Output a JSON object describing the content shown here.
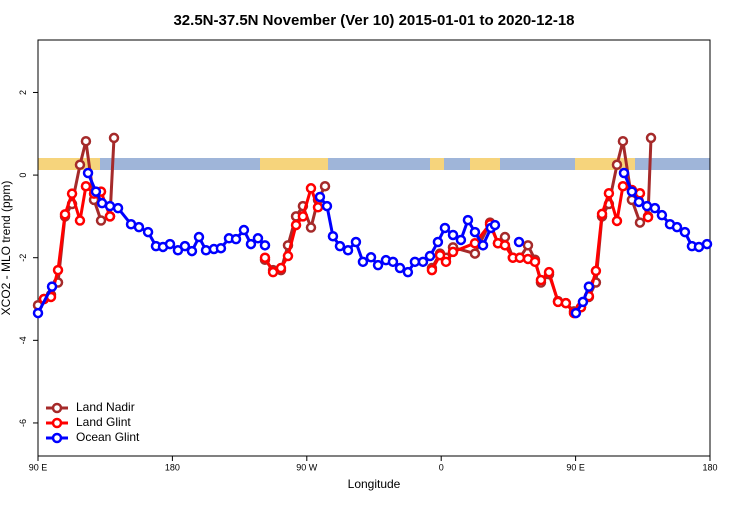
{
  "chart_data": {
    "type": "line",
    "title": "32.5N-37.5N November (Ver 10)   2015-01-01 to 2020-12-18",
    "x_label": "Longitude",
    "y_label": "XCO2 - MLO trend (ppm)",
    "xlim": [
      90,
      540
    ],
    "ylim": [
      -6.8,
      3.27
    ],
    "xticks": [
      {
        "value": 90,
        "label": "90 E"
      },
      {
        "value": 180,
        "label": "180"
      },
      {
        "value": 270,
        "label": "90 W"
      },
      {
        "value": 360,
        "label": "0"
      },
      {
        "value": 450,
        "label": "90 E"
      },
      {
        "value": 540,
        "label": "180"
      }
    ],
    "yticks": [
      -6,
      -4,
      -2,
      0,
      2
    ],
    "legend": "bottom-left",
    "series": [
      {
        "name": "Land Nadir",
        "color": "#a52a2a",
        "x": [
          90,
          94,
          98.7,
          103.4,
          108.1,
          112.8,
          118.1,
          122.1,
          127.5,
          132.2,
          138.2,
          140.9,
          242,
          247.4,
          252.7,
          257.4,
          262.8,
          267.4,
          272.8,
          277.5,
          282.2,
          353.8,
          359.2,
          363.2,
          367.9,
          382.6,
          392.7,
          398,
          402.7,
          408,
          412.7,
          418.1,
          422.8,
          426.8,
          432.2,
          438.2,
          443.5,
          448.9,
          453.6,
          458.9,
          463.6,
          467.7,
          472.3,
          477.7,
          481.7,
          487.7,
          493.1,
          498.5,
          500.5
        ],
        "values": [
          -3.15,
          -3.0,
          -2.9,
          -2.6,
          -1.0,
          -0.7,
          0.25,
          0.82,
          -0.6,
          -1.1,
          -1.0,
          0.9,
          -2.05,
          -2.3,
          -2.3,
          -1.7,
          -1.0,
          -0.75,
          -1.27,
          -0.6,
          -0.27,
          -2.25,
          -1.9,
          -2.0,
          -1.75,
          -1.9,
          -1.15,
          -1.65,
          -1.5,
          -2.0,
          -2.0,
          -1.7,
          -2.05,
          -2.6,
          -2.4,
          -3.05,
          -3.1,
          -3.3,
          -3.2,
          -2.95,
          -2.6,
          -1.0,
          -0.7,
          0.25,
          0.82,
          -0.6,
          -1.15,
          -1.0,
          0.9
        ]
      },
      {
        "name": "Land Glint",
        "color": "#ff0000",
        "x": [
          94,
          98.7,
          103.4,
          108.1,
          112.8,
          118.1,
          122.1,
          127.5,
          132.2,
          138.2,
          242,
          247.4,
          252.7,
          257.4,
          262.8,
          267.4,
          272.8,
          277.5,
          353.8,
          359.2,
          363.2,
          367.9,
          382.6,
          392.7,
          398,
          402.7,
          408,
          412.7,
          418.1,
          422.8,
          426.8,
          432.2,
          438.2,
          443.5,
          448.9,
          453.6,
          458.9,
          463.6,
          467.7,
          472.3,
          477.7,
          481.7,
          487.7,
          493.1,
          498.5
        ],
        "values": [
          -3.0,
          -2.95,
          -2.3,
          -0.95,
          -0.45,
          -1.1,
          -0.27,
          -0.45,
          -0.4,
          -1.0,
          -2.0,
          -2.35,
          -2.25,
          -1.96,
          -1.21,
          -1.0,
          -0.32,
          -0.78,
          -2.3,
          -1.94,
          -2.1,
          -1.86,
          -1.65,
          -1.19,
          -1.65,
          -1.7,
          -2.0,
          -2.0,
          -2.03,
          -2.1,
          -2.54,
          -2.35,
          -3.07,
          -3.1,
          -3.34,
          -3.2,
          -2.93,
          -2.32,
          -0.94,
          -0.44,
          -1.11,
          -0.27,
          -0.36,
          -0.44,
          -1.02
        ]
      },
      {
        "name": "Ocean Glint",
        "color": "#0000ff",
        "x": [
          90,
          99.4,
          123.5,
          128.8,
          132.9,
          138.2,
          143.6,
          152.3,
          157.6,
          163.7,
          169,
          173.7,
          178.4,
          183.7,
          188.4,
          193.1,
          197.8,
          202.5,
          207.8,
          212.5,
          217.9,
          222.6,
          227.9,
          232.6,
          237.3,
          242,
          278.8,
          283.5,
          287.5,
          292.2,
          297.6,
          302.9,
          307.6,
          313,
          317.7,
          323,
          327.7,
          332.4,
          337.7,
          342.4,
          347.8,
          352.5,
          357.8,
          362.5,
          367.9,
          373.2,
          377.9,
          382.6,
          388,
          393.3,
          396,
          412.1,
          450.2,
          454.9,
          458.9,
          482.4,
          487.7,
          492.4,
          497.8,
          503.1,
          507.8,
          513.2,
          517.9,
          523.2,
          527.9,
          532.6,
          538
        ],
        "values": [
          -3.34,
          -2.7,
          0.05,
          -0.4,
          -0.68,
          -0.75,
          -0.8,
          -1.19,
          -1.26,
          -1.38,
          -1.72,
          -1.74,
          -1.67,
          -1.82,
          -1.72,
          -1.84,
          -1.5,
          -1.82,
          -1.79,
          -1.77,
          -1.53,
          -1.55,
          -1.33,
          -1.67,
          -1.53,
          -1.7,
          -0.53,
          -0.75,
          -1.48,
          -1.72,
          -1.82,
          -1.62,
          -2.1,
          -1.99,
          -2.18,
          -2.06,
          -2.1,
          -2.25,
          -2.35,
          -2.1,
          -2.1,
          -1.96,
          -1.62,
          -1.28,
          -1.45,
          -1.57,
          -1.09,
          -1.38,
          -1.7,
          -1.28,
          -1.21,
          -1.62,
          -3.34,
          -3.07,
          -2.7,
          0.05,
          -0.4,
          -0.65,
          -0.75,
          -0.8,
          -0.97,
          -1.19,
          -1.26,
          -1.38,
          -1.72,
          -1.74,
          -1.67
        ]
      }
    ]
  }
}
